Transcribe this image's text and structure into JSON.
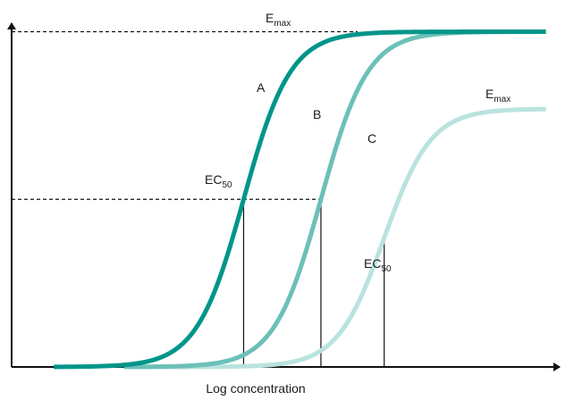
{
  "chart_data": {
    "type": "line",
    "xlabel": "Log concentration",
    "ylabel": "",
    "grid": false,
    "legend": "none",
    "series": [
      {
        "name": "A",
        "ec50": 3.3,
        "emax": 100,
        "hill": 1.3,
        "color": "#00958a",
        "x": [
          0.6,
          7.6
        ]
      },
      {
        "name": "B",
        "ec50": 4.4,
        "emax": 100,
        "hill": 1.3,
        "color": "#6cc0b8",
        "x": [
          1.6,
          7.6
        ]
      },
      {
        "name": "C",
        "ec50": 5.3,
        "emax": 77,
        "hill": 1.3,
        "color": "#b9e3de",
        "x": [
          1.8,
          7.6
        ]
      }
    ],
    "annotations": {
      "emax_top": {
        "main": "E",
        "sub": "max"
      },
      "emax_c": {
        "main": "E",
        "sub": "max"
      },
      "ec50_left": {
        "main": "EC",
        "sub": "50"
      },
      "ec50_right": {
        "main": "EC",
        "sub": "50"
      }
    },
    "xlim": [
      0,
      8
    ],
    "ylim": [
      0,
      106
    ]
  }
}
